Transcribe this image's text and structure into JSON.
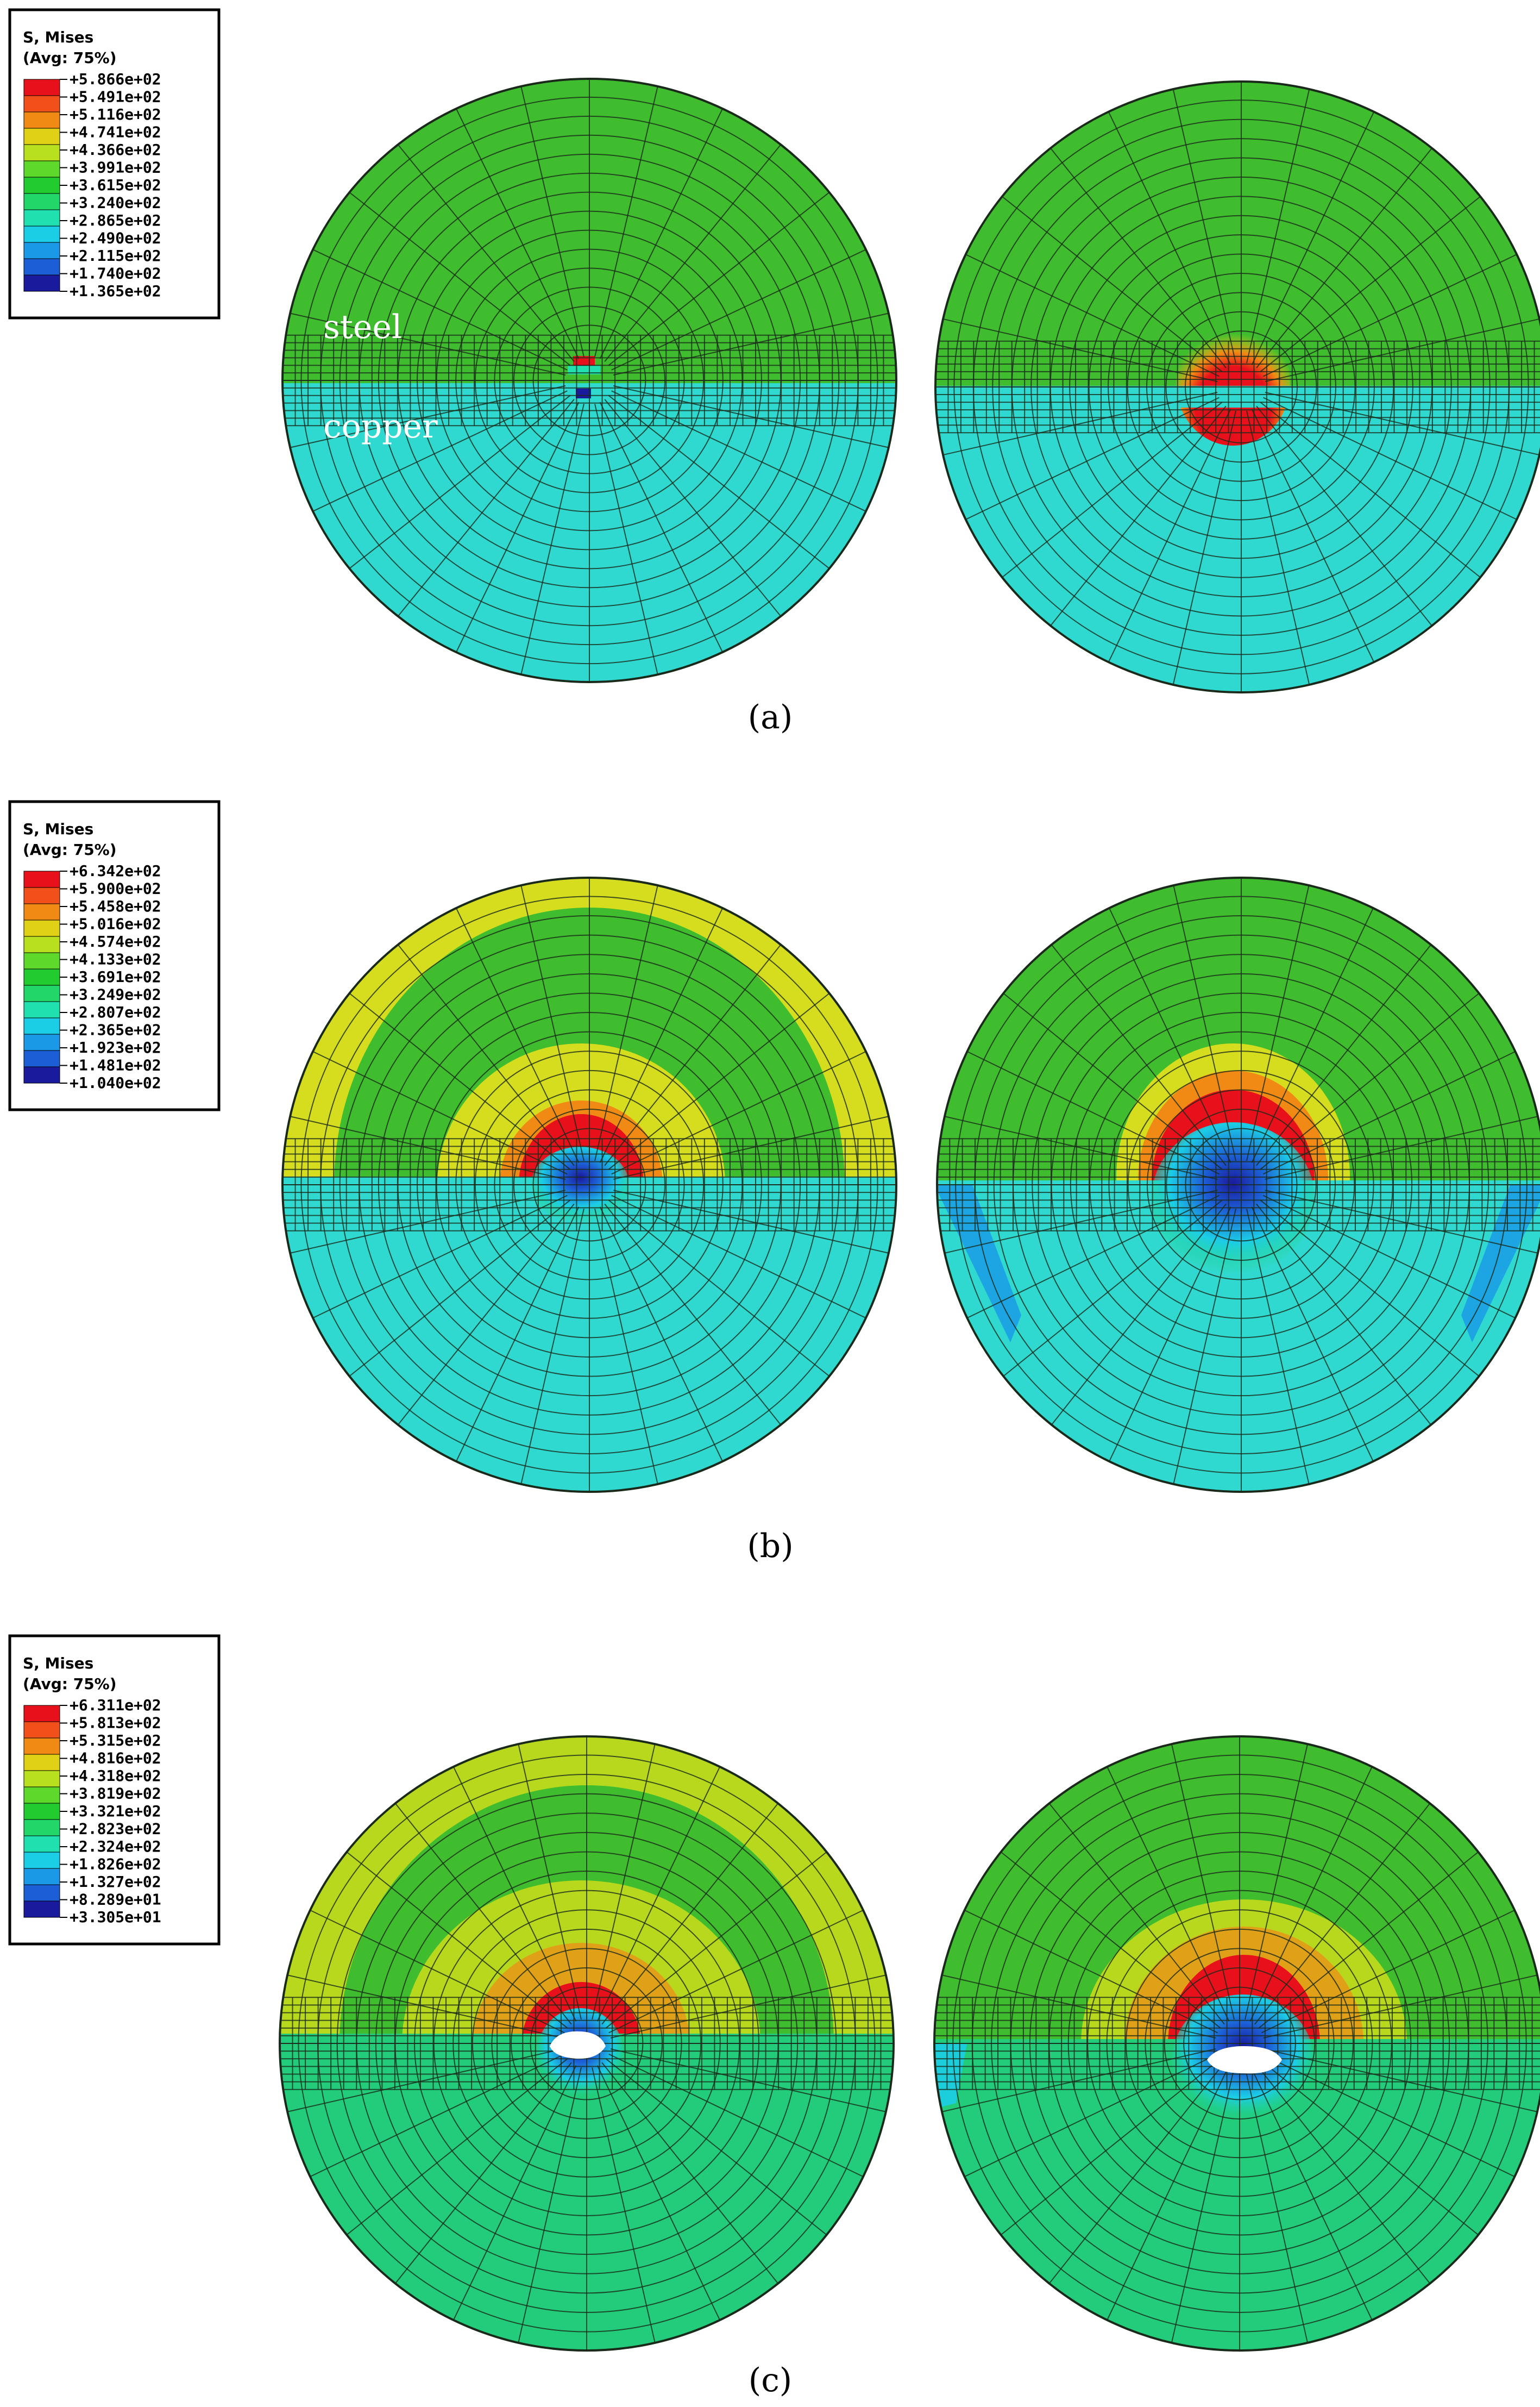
{
  "panels": [
    {
      "caption": "(a)",
      "legend": {
        "title_line1": "S, Mises",
        "title_line2": "(Avg: 75%)",
        "ticks": [
          "+5.866e+02",
          "+5.491e+02",
          "+5.116e+02",
          "+4.741e+02",
          "+4.366e+02",
          "+3.991e+02",
          "+3.615e+02",
          "+3.240e+02",
          "+2.865e+02",
          "+2.490e+02",
          "+2.115e+02",
          "+1.740e+02",
          "+1.365e+02"
        ]
      },
      "labels": {
        "steel": "steel",
        "copper": "copper"
      }
    },
    {
      "caption": "(b)",
      "legend": {
        "title_line1": "S, Mises",
        "title_line2": "(Avg: 75%)",
        "ticks": [
          "+6.342e+02",
          "+5.900e+02",
          "+5.458e+02",
          "+5.016e+02",
          "+4.574e+02",
          "+4.133e+02",
          "+3.691e+02",
          "+3.249e+02",
          "+2.807e+02",
          "+2.365e+02",
          "+1.923e+02",
          "+1.481e+02",
          "+1.040e+02"
        ]
      }
    },
    {
      "caption": "(c)",
      "legend": {
        "title_line1": "S, Mises",
        "title_line2": "(Avg: 75%)",
        "ticks": [
          "+6.311e+02",
          "+5.813e+02",
          "+5.315e+02",
          "+4.816e+02",
          "+4.318e+02",
          "+3.819e+02",
          "+3.321e+02",
          "+2.823e+02",
          "+2.324e+02",
          "+1.826e+02",
          "+1.327e+02",
          "+8.289e+01",
          "+3.305e+01"
        ]
      }
    }
  ],
  "colors": {
    "legend_scale": [
      "#e8101a",
      "#f2501a",
      "#f08a14",
      "#e0d016",
      "#b8e01e",
      "#5ed82a",
      "#22cc2e",
      "#22d66a",
      "#20e0b0",
      "#1ccde6",
      "#1a9ae6",
      "#1c5ed6",
      "#1a1a9c"
    ],
    "steel_green": "#3fbd2e",
    "copper_cyan": "#30d9d0",
    "mesh_line": "#1a2a1a"
  }
}
